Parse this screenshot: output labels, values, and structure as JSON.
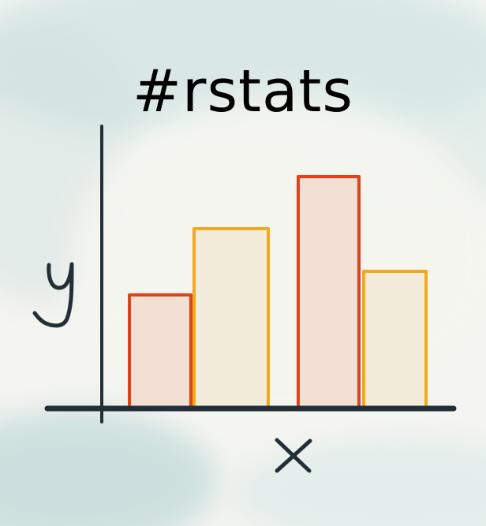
{
  "title": "#rstats",
  "chart_data": {
    "type": "bar",
    "categories": [
      "",
      "",
      "",
      ""
    ],
    "values": [
      1.2,
      1.9,
      2.45,
      1.45
    ],
    "colors": {
      "fills": [
        "#f3e0d5",
        "#f4ecda",
        "#f3e0d5",
        "#f4ecda"
      ],
      "strokes": [
        "#e2421a",
        "#f2a81f",
        "#e2421a",
        "#f2a81f"
      ]
    },
    "xlabel": "x",
    "ylabel": "y",
    "ylim": [
      0,
      2.5
    ],
    "grid": false,
    "legend": "none"
  },
  "style": {
    "axis_color": "#232f37"
  }
}
